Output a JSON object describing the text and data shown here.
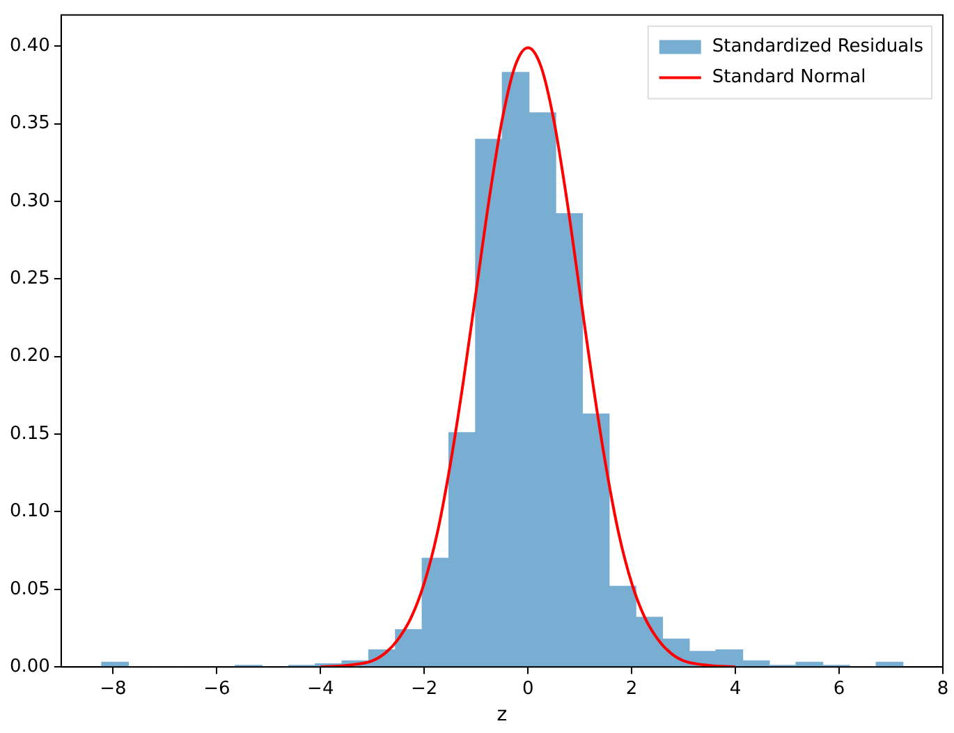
{
  "chart_data": {
    "type": "histogram",
    "xlabel": "z",
    "bins": [
      -8.22,
      -7.705,
      -7.19,
      -6.675,
      -6.16,
      -5.645,
      -5.13,
      -4.615,
      -4.1,
      -3.585,
      -3.07,
      -2.555,
      -2.04,
      -1.525,
      -1.01,
      -0.495,
      0.02,
      0.535,
      1.05,
      1.565,
      2.08,
      2.595,
      3.11,
      3.625,
      4.14,
      4.655,
      5.17,
      5.685,
      6.2,
      6.715,
      7.23
    ],
    "series": [
      {
        "name": "Standardized Residuals",
        "color": "#79aed3",
        "values": [
          0.003,
          0,
          0,
          0,
          0,
          0.001,
          0,
          0.001,
          0.002,
          0.004,
          0.011,
          0.024,
          0.07,
          0.151,
          0.34,
          0.383,
          0.357,
          0.292,
          0.163,
          0.052,
          0.032,
          0.018,
          0.01,
          0.011,
          0.004,
          0.001,
          0.003,
          0.001,
          0,
          0.003
        ]
      },
      {
        "name": "Standard Normal",
        "type": "line",
        "color": "#ff0000",
        "marker": "none",
        "x": [
          -4,
          -3.5,
          -3,
          -2.75,
          -2.5,
          -2.25,
          -2,
          -1.75,
          -1.5,
          -1.25,
          -1,
          -0.75,
          -0.5,
          -0.25,
          0,
          0.25,
          0.5,
          0.75,
          1,
          1.25,
          1.5,
          1.75,
          2,
          2.25,
          2.5,
          2.75,
          3,
          3.5,
          4
        ],
        "values": [
          0,
          0.001,
          0.004,
          0.009,
          0.018,
          0.032,
          0.054,
          0.086,
          0.13,
          0.183,
          0.242,
          0.301,
          0.352,
          0.387,
          0.399,
          0.387,
          0.352,
          0.301,
          0.242,
          0.183,
          0.13,
          0.086,
          0.054,
          0.032,
          0.018,
          0.009,
          0.004,
          0.001,
          0
        ]
      }
    ],
    "xlim": [
      -9,
      8
    ],
    "xticks": [
      {
        "value": -8,
        "label": "−8"
      },
      {
        "value": -6,
        "label": "−6"
      },
      {
        "value": -4,
        "label": "−4"
      },
      {
        "value": -2,
        "label": "−2"
      },
      0,
      2,
      4,
      6,
      8
    ],
    "ylim": [
      0,
      0.42
    ],
    "yticks": [
      {
        "value": 0,
        "label": "0.00"
      },
      0.05,
      {
        "value": 0.1,
        "label": "0.10"
      },
      0.15,
      {
        "value": 0.2,
        "label": "0.20"
      },
      0.25,
      {
        "value": 0.3,
        "label": "0.30"
      },
      0.35,
      {
        "value": 0.4,
        "label": "0.40"
      }
    ],
    "grid": false,
    "legend": "top right"
  }
}
